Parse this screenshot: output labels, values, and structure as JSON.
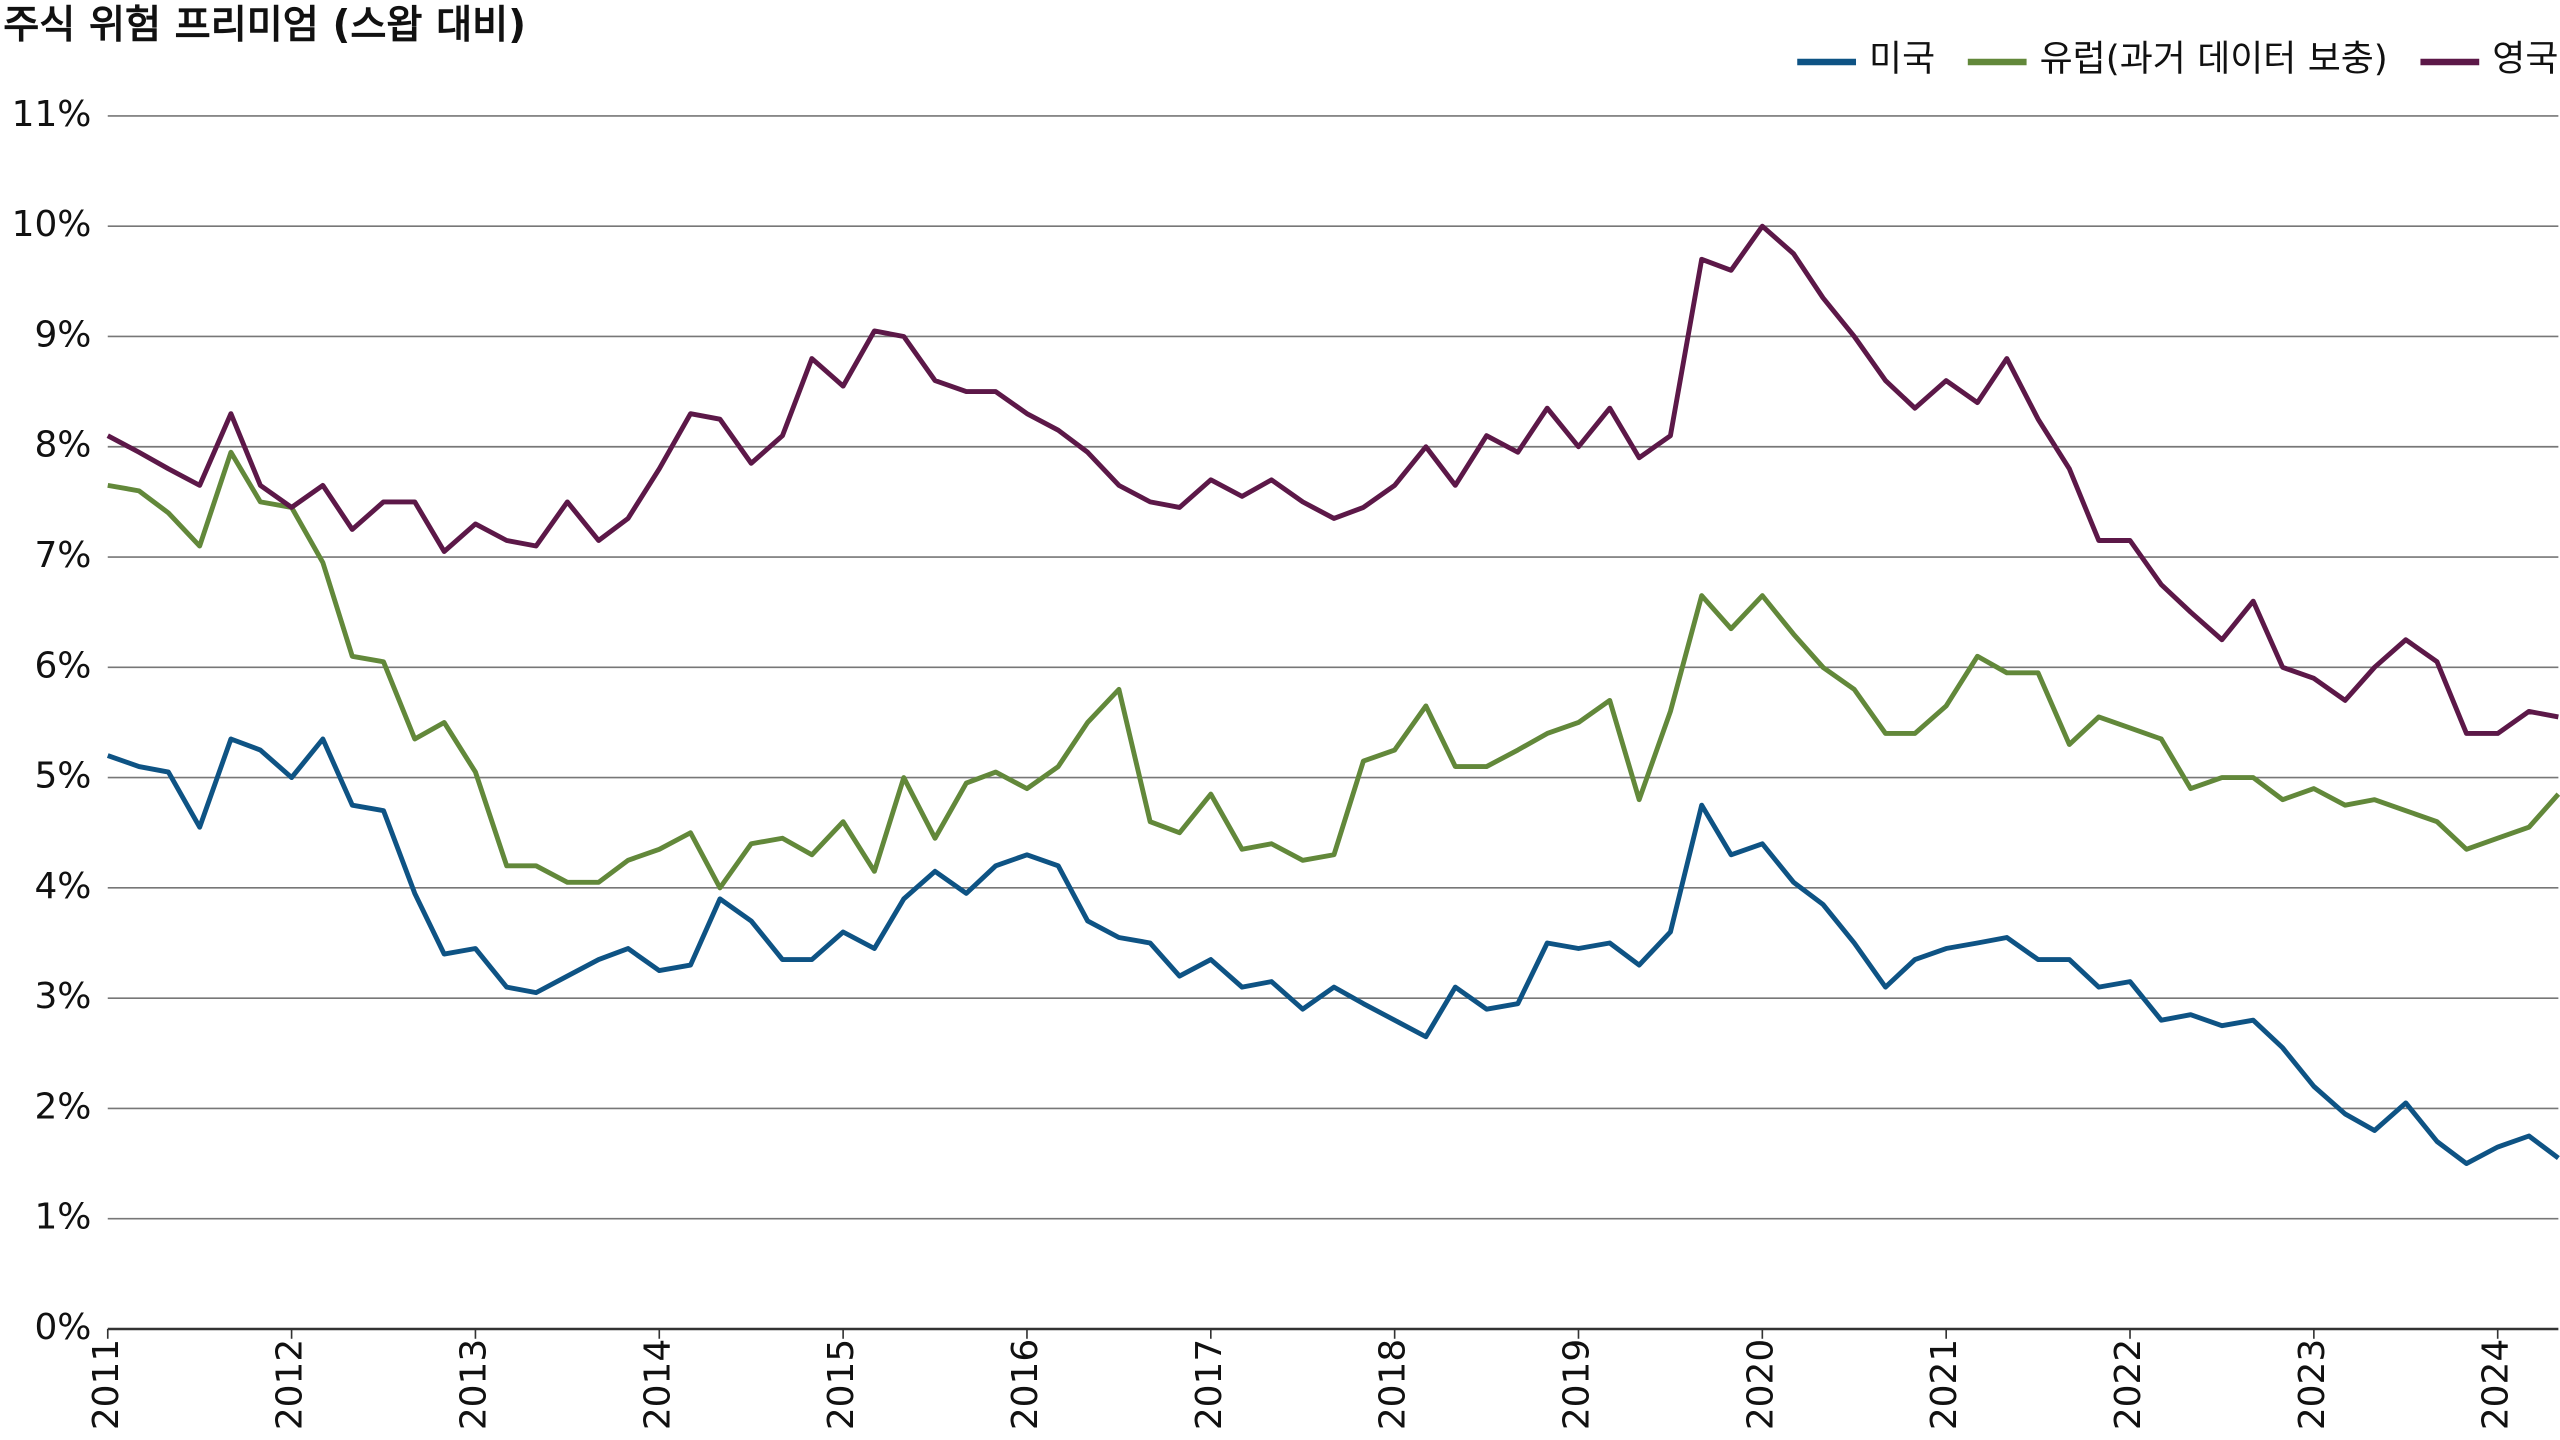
{
  "chart_data": {
    "type": "line",
    "title": "주식 위험 프리미엄 (스왑 대비)",
    "x": [
      2011,
      2011.17,
      2011.33,
      2011.5,
      2011.67,
      2011.83,
      2012,
      2012.17,
      2012.33,
      2012.5,
      2012.67,
      2012.83,
      2013,
      2013.17,
      2013.33,
      2013.5,
      2013.67,
      2013.83,
      2014,
      2014.17,
      2014.33,
      2014.5,
      2014.67,
      2014.83,
      2015,
      2015.17,
      2015.33,
      2015.5,
      2015.67,
      2015.83,
      2016,
      2016.17,
      2016.33,
      2016.5,
      2016.67,
      2016.83,
      2017,
      2017.17,
      2017.33,
      2017.5,
      2017.67,
      2017.83,
      2018,
      2018.17,
      2018.33,
      2018.5,
      2018.67,
      2018.83,
      2019,
      2019.17,
      2019.33,
      2019.5,
      2019.67,
      2019.83,
      2020,
      2020.17,
      2020.33,
      2020.5,
      2020.67,
      2020.83,
      2021,
      2021.17,
      2021.33,
      2021.5,
      2021.67,
      2021.83,
      2022,
      2022.17,
      2022.33,
      2022.5,
      2022.67,
      2022.83,
      2023,
      2023.17,
      2023.33,
      2023.5,
      2023.67,
      2023.83,
      2024,
      2024.17,
      2024.33
    ],
    "series": [
      {
        "name": "미국",
        "color": "#0e5384",
        "values": [
          5.2,
          5.1,
          5.05,
          4.55,
          5.35,
          5.25,
          5.0,
          5.35,
          4.75,
          4.7,
          3.95,
          3.4,
          3.45,
          3.1,
          3.05,
          3.2,
          3.35,
          3.45,
          3.25,
          3.3,
          3.9,
          3.7,
          3.35,
          3.35,
          3.6,
          3.45,
          3.9,
          4.15,
          3.95,
          4.2,
          4.3,
          4.2,
          3.7,
          3.55,
          3.5,
          3.2,
          3.35,
          3.1,
          3.15,
          2.9,
          3.1,
          2.95,
          2.8,
          2.65,
          3.1,
          2.9,
          2.95,
          3.5,
          3.45,
          3.5,
          3.3,
          3.6,
          4.75,
          4.3,
          4.4,
          4.05,
          3.85,
          3.5,
          3.1,
          3.35,
          3.45,
          3.5,
          3.55,
          3.35,
          3.35,
          3.1,
          3.15,
          2.8,
          2.85,
          2.75,
          2.8,
          2.55,
          2.2,
          1.95,
          1.8,
          2.05,
          1.7,
          1.5,
          1.65,
          1.75,
          1.55
        ]
      },
      {
        "name": "유럽(과거 데이터 보충)",
        "color": "#62883a",
        "values": [
          7.65,
          7.6,
          7.4,
          7.1,
          7.95,
          7.5,
          7.45,
          6.95,
          6.1,
          6.05,
          5.35,
          5.5,
          5.05,
          4.2,
          4.2,
          4.05,
          4.05,
          4.25,
          4.35,
          4.5,
          4.0,
          4.4,
          4.45,
          4.3,
          4.6,
          4.15,
          5.0,
          4.45,
          4.95,
          5.05,
          4.9,
          5.1,
          5.5,
          5.8,
          4.6,
          4.5,
          4.85,
          4.35,
          4.4,
          4.25,
          4.3,
          5.15,
          5.25,
          5.65,
          5.1,
          5.1,
          5.25,
          5.4,
          5.5,
          5.7,
          4.8,
          5.6,
          6.65,
          6.35,
          6.65,
          6.3,
          6.0,
          5.8,
          5.4,
          5.4,
          5.65,
          6.1,
          5.95,
          5.95,
          5.3,
          5.55,
          5.45,
          5.35,
          4.9,
          5.0,
          5.0,
          4.8,
          4.9,
          4.75,
          4.8,
          4.7,
          4.6,
          4.35,
          4.45,
          4.55,
          4.85
        ]
      },
      {
        "name": "영국",
        "color": "#5c1848",
        "values": [
          8.1,
          7.95,
          7.8,
          7.65,
          8.3,
          7.65,
          7.45,
          7.65,
          7.25,
          7.5,
          7.5,
          7.05,
          7.3,
          7.15,
          7.1,
          7.5,
          7.15,
          7.35,
          7.8,
          8.3,
          8.25,
          7.85,
          8.1,
          8.8,
          8.55,
          9.05,
          9.0,
          8.6,
          8.5,
          8.5,
          8.3,
          8.15,
          7.95,
          7.65,
          7.5,
          7.45,
          7.7,
          7.55,
          7.7,
          7.5,
          7.35,
          7.45,
          7.65,
          8.0,
          7.65,
          8.1,
          7.95,
          8.35,
          8.0,
          8.35,
          7.9,
          8.1,
          9.7,
          9.6,
          10.0,
          9.75,
          9.35,
          9.0,
          8.6,
          8.35,
          8.6,
          8.4,
          8.8,
          8.25,
          7.8,
          7.15,
          7.15,
          6.75,
          6.5,
          6.25,
          6.6,
          6.0,
          5.9,
          5.7,
          6.0,
          6.25,
          6.05,
          5.4,
          5.4,
          5.6,
          5.55
        ]
      }
    ],
    "xlim": [
      2011,
      2024.33
    ],
    "xticks": [
      2011,
      2012,
      2013,
      2014,
      2015,
      2016,
      2017,
      2018,
      2019,
      2020,
      2021,
      2022,
      2023,
      2024
    ],
    "ylim": [
      0,
      11
    ],
    "yticks": [
      {
        "value": 0,
        "label": "0%"
      },
      {
        "value": 1,
        "label": "1%"
      },
      {
        "value": 2,
        "label": "2%"
      },
      {
        "value": 3,
        "label": "3%"
      },
      {
        "value": 4,
        "label": "4%"
      },
      {
        "value": 5,
        "label": "5%"
      },
      {
        "value": 6,
        "label": "6%"
      },
      {
        "value": 7,
        "label": "7%"
      },
      {
        "value": 8,
        "label": "8%"
      },
      {
        "value": 9,
        "label": "9%"
      },
      {
        "value": 10,
        "label": "10%"
      },
      {
        "value": 11,
        "label": "11%"
      }
    ],
    "grid": true,
    "legend": "top-right"
  }
}
